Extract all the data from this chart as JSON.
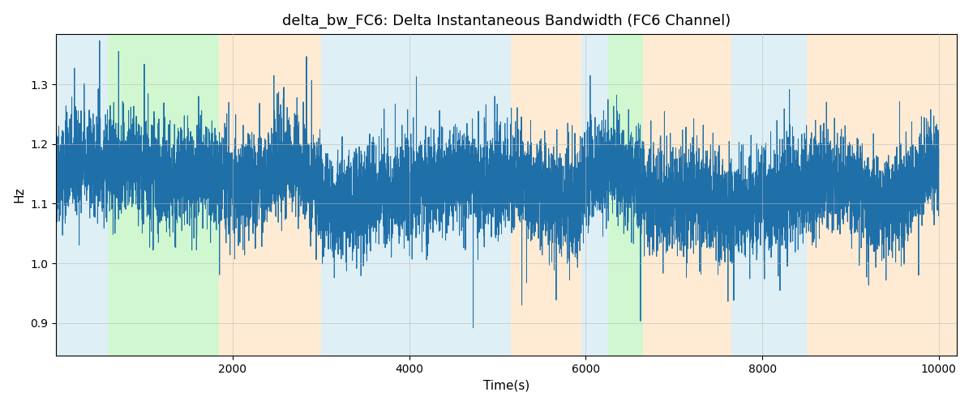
{
  "title": "delta_bw_FC6: Delta Instantaneous Bandwidth (FC6 Channel)",
  "xlabel": "Time(s)",
  "ylabel": "Hz",
  "xlim": [
    0,
    10200
  ],
  "ylim": [
    0.845,
    1.385
  ],
  "xticks": [
    2000,
    4000,
    6000,
    8000,
    10000
  ],
  "yticks": [
    0.9,
    1.0,
    1.1,
    1.2,
    1.3
  ],
  "line_color": "#1f6fa8",
  "line_width": 0.7,
  "grid_color": "#bbbbbb",
  "background_bands": [
    {
      "xmin": 0,
      "xmax": 590,
      "color": "#add8e6",
      "alpha": 0.4
    },
    {
      "xmin": 590,
      "xmax": 1850,
      "color": "#90ee90",
      "alpha": 0.42
    },
    {
      "xmin": 1850,
      "xmax": 3000,
      "color": "#ffd8a8",
      "alpha": 0.5
    },
    {
      "xmin": 3000,
      "xmax": 3500,
      "color": "#add8e6",
      "alpha": 0.4
    },
    {
      "xmin": 3500,
      "xmax": 5150,
      "color": "#add8e6",
      "alpha": 0.4
    },
    {
      "xmin": 5150,
      "xmax": 5950,
      "color": "#ffd8a8",
      "alpha": 0.5
    },
    {
      "xmin": 5950,
      "xmax": 6250,
      "color": "#add8e6",
      "alpha": 0.4
    },
    {
      "xmin": 6250,
      "xmax": 6650,
      "color": "#90ee90",
      "alpha": 0.42
    },
    {
      "xmin": 6650,
      "xmax": 7650,
      "color": "#ffd8a8",
      "alpha": 0.5
    },
    {
      "xmin": 7650,
      "xmax": 8500,
      "color": "#add8e6",
      "alpha": 0.4
    },
    {
      "xmin": 8500,
      "xmax": 10200,
      "color": "#ffd8a8",
      "alpha": 0.5
    }
  ],
  "seed": 42,
  "n_points": 10000,
  "signal_mean": 1.13,
  "signal_base_std": 0.042,
  "figsize": [
    12.0,
    5.0
  ],
  "dpi": 100
}
